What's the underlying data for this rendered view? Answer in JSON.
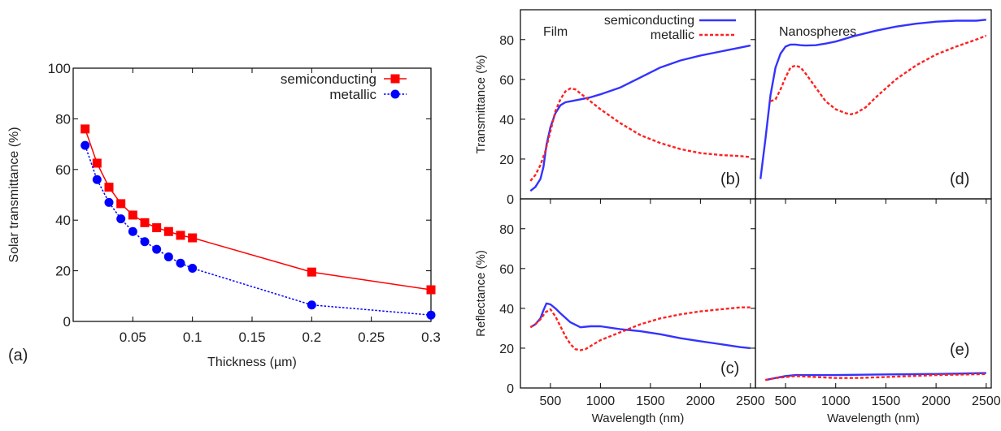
{
  "chart_data": [
    {
      "id": "a",
      "type": "line",
      "panel_label": "(a)",
      "xlabel": "Thickness (µm)",
      "ylabel": "Solar transmittance (%)",
      "xlim": [
        0,
        0.3
      ],
      "ylim": [
        0,
        100
      ],
      "xticks": [
        {
          "v": 0.05,
          "label": "0.05"
        },
        {
          "v": 0.1,
          "label": "0.1"
        },
        {
          "v": 0.15,
          "label": "0.15"
        },
        {
          "v": 0.2,
          "label": "0.2"
        },
        {
          "v": 0.25,
          "label": "0.25"
        },
        {
          "v": 0.3,
          "label": "0.3"
        }
      ],
      "yticks": [
        {
          "v": 0,
          "label": "0"
        },
        {
          "v": 20,
          "label": "20"
        },
        {
          "v": 40,
          "label": "40"
        },
        {
          "v": 60,
          "label": "60"
        },
        {
          "v": 80,
          "label": "80"
        },
        {
          "v": 100,
          "label": "100"
        }
      ],
      "grid": false,
      "legend_position": "top-right",
      "series": [
        {
          "name": "semiconducting",
          "color": "#ff0000",
          "dash": "solid",
          "marker": "square",
          "x": [
            0.01,
            0.02,
            0.03,
            0.04,
            0.05,
            0.06,
            0.07,
            0.08,
            0.09,
            0.1,
            0.2,
            0.3
          ],
          "y": [
            76,
            62.5,
            53,
            46.5,
            42,
            39,
            37,
            35.5,
            34,
            33,
            19.5,
            12.5
          ]
        },
        {
          "name": "metallic",
          "color": "#0000ff",
          "dash": "dotted",
          "marker": "circle",
          "x": [
            0.01,
            0.02,
            0.03,
            0.04,
            0.05,
            0.06,
            0.07,
            0.08,
            0.09,
            0.1,
            0.2,
            0.3
          ],
          "y": [
            69.5,
            56,
            47,
            40.5,
            35.5,
            31.5,
            28.5,
            25.5,
            23,
            21,
            6.5,
            2.5
          ]
        }
      ]
    },
    {
      "id": "b",
      "type": "line",
      "panel_label": "(b)",
      "title": "Film",
      "xlabel": "",
      "ylabel": "Transmittance (%)",
      "xlim": [
        200,
        2550
      ],
      "ylim": [
        0,
        95
      ],
      "yticks": [
        {
          "v": 0,
          "label": "0"
        },
        {
          "v": 20,
          "label": "20"
        },
        {
          "v": 40,
          "label": "40"
        },
        {
          "v": 60,
          "label": "60"
        },
        {
          "v": 80,
          "label": "80"
        }
      ],
      "legend_position": "top",
      "series": [
        {
          "name": "semiconducting",
          "color": "#3333ff",
          "dash": "solid",
          "x": [
            300,
            350,
            400,
            430,
            460,
            500,
            550,
            600,
            650,
            700,
            800,
            900,
            1000,
            1200,
            1400,
            1600,
            1800,
            2000,
            2200,
            2400,
            2500
          ],
          "y": [
            4,
            6,
            10,
            16,
            27,
            36,
            43,
            47,
            48.5,
            49,
            50,
            51,
            52.5,
            56,
            61,
            66,
            69.5,
            72,
            74,
            76,
            77
          ]
        },
        {
          "name": "metallic",
          "color": "#ff2020",
          "dash": "dashed",
          "x": [
            300,
            350,
            400,
            450,
            500,
            550,
            600,
            650,
            700,
            750,
            800,
            900,
            1000,
            1200,
            1400,
            1600,
            1800,
            2000,
            2200,
            2400,
            2500
          ],
          "y": [
            9,
            12,
            17,
            24,
            34,
            44,
            50,
            54,
            55.5,
            55,
            53,
            49,
            45,
            38,
            32,
            28,
            25,
            23,
            22,
            21.5,
            21
          ]
        }
      ]
    },
    {
      "id": "c",
      "type": "line",
      "panel_label": "(c)",
      "xlabel": "Wavelength (nm)",
      "ylabel": "Reflectance (%)",
      "xlim": [
        200,
        2550
      ],
      "ylim": [
        0,
        95
      ],
      "xticks": [
        {
          "v": 500,
          "label": "500"
        },
        {
          "v": 1000,
          "label": "1000"
        },
        {
          "v": 1500,
          "label": "1500"
        },
        {
          "v": 2000,
          "label": "2000"
        },
        {
          "v": 2500,
          "label": "2500"
        }
      ],
      "yticks": [
        {
          "v": 0,
          "label": "0"
        },
        {
          "v": 20,
          "label": "20"
        },
        {
          "v": 40,
          "label": "40"
        },
        {
          "v": 60,
          "label": "60"
        },
        {
          "v": 80,
          "label": "80"
        }
      ],
      "series": [
        {
          "name": "semiconducting",
          "color": "#3333ff",
          "dash": "solid",
          "x": [
            300,
            350,
            400,
            430,
            460,
            500,
            550,
            600,
            700,
            800,
            900,
            1000,
            1200,
            1400,
            1600,
            1800,
            2000,
            2200,
            2400,
            2500
          ],
          "y": [
            30.5,
            32,
            35,
            39,
            42.5,
            42,
            40,
            37.5,
            33,
            30.5,
            31,
            31,
            29.5,
            28.5,
            27,
            25,
            23.5,
            22,
            20.5,
            20
          ]
        },
        {
          "name": "metallic",
          "color": "#ff2020",
          "dash": "dashed",
          "x": [
            300,
            350,
            400,
            450,
            500,
            550,
            600,
            650,
            700,
            750,
            800,
            850,
            900,
            1000,
            1200,
            1400,
            1600,
            1800,
            2000,
            2200,
            2400,
            2500
          ],
          "y": [
            30.5,
            32,
            34.5,
            38,
            39.5,
            36,
            31,
            26,
            22,
            19.5,
            19,
            19.5,
            21,
            24,
            28,
            32,
            35,
            37,
            38.5,
            39.5,
            40.5,
            40.5
          ]
        }
      ]
    },
    {
      "id": "d",
      "type": "line",
      "panel_label": "(d)",
      "title": "Nanospheres",
      "xlabel": "",
      "ylabel": "",
      "xlim": [
        200,
        2550
      ],
      "ylim": [
        0,
        95
      ],
      "series": [
        {
          "name": "semiconducting",
          "color": "#3333ff",
          "dash": "solid",
          "x": [
            250,
            300,
            350,
            400,
            450,
            500,
            550,
            600,
            650,
            700,
            800,
            900,
            1000,
            1200,
            1400,
            1600,
            1800,
            2000,
            2200,
            2400,
            2500
          ],
          "y": [
            10,
            30,
            52,
            66,
            73,
            76.5,
            77.5,
            77.5,
            77.2,
            77,
            77.2,
            78,
            79,
            82,
            84.5,
            86.5,
            88,
            89,
            89.5,
            89.5,
            90
          ]
        },
        {
          "name": "metallic",
          "color": "#ff2020",
          "dash": "dashed",
          "x": [
            350,
            400,
            450,
            500,
            550,
            600,
            650,
            700,
            800,
            900,
            1000,
            1100,
            1150,
            1200,
            1300,
            1400,
            1600,
            1800,
            2000,
            2200,
            2400,
            2500
          ],
          "y": [
            49,
            50,
            55,
            61,
            66,
            67,
            66,
            63,
            56,
            49,
            45,
            43,
            42.5,
            43,
            46,
            51,
            60,
            67,
            72.5,
            76.5,
            80,
            82
          ]
        }
      ]
    },
    {
      "id": "e",
      "type": "line",
      "panel_label": "(e)",
      "xlabel": "Wavelength (nm)",
      "ylabel": "",
      "xlim": [
        200,
        2550
      ],
      "ylim": [
        0,
        95
      ],
      "xticks": [
        {
          "v": 500,
          "label": "500"
        },
        {
          "v": 1000,
          "label": "1000"
        },
        {
          "v": 1500,
          "label": "1500"
        },
        {
          "v": 2000,
          "label": "2000"
        },
        {
          "v": 2500,
          "label": "2500"
        }
      ],
      "series": [
        {
          "name": "semiconducting",
          "color": "#3333ff",
          "dash": "solid",
          "x": [
            300,
            400,
            500,
            600,
            800,
            1000,
            1500,
            2000,
            2500
          ],
          "y": [
            4,
            5,
            6,
            6.5,
            6.5,
            6.5,
            6.8,
            7,
            7.5
          ]
        },
        {
          "name": "metallic",
          "color": "#ff2020",
          "dash": "dashed",
          "x": [
            300,
            400,
            500,
            600,
            800,
            1000,
            1200,
            1500,
            2000,
            2500
          ],
          "y": [
            4,
            5,
            5.5,
            6,
            5.5,
            5,
            5,
            5.5,
            6.5,
            7
          ]
        }
      ]
    }
  ]
}
